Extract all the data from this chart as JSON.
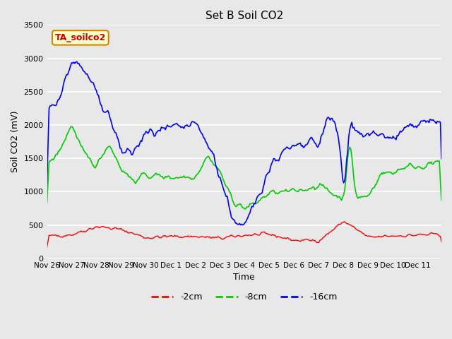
{
  "title": "Set B Soil CO2",
  "xlabel": "Time",
  "ylabel": "Soil CO2 (mV)",
  "ylim": [
    0,
    3500
  ],
  "colors": {
    "2cm": "#ff0000",
    "8cm": "#00cc00",
    "16cm": "#0000ff"
  },
  "legend_label": "TA_soilco2",
  "xtick_labels": [
    "Nov 26",
    "Nov 27",
    "Nov 28",
    "Nov 29",
    "Nov 30",
    "Dec 1",
    "Dec 2",
    "Dec 3",
    "Dec 4",
    "Dec 5",
    "Dec 6",
    "Dec 7",
    "Dec 8",
    "Dec 9",
    "Dec 10",
    "Dec 11"
  ],
  "xtick_positions": [
    0,
    24,
    48,
    72,
    96,
    120,
    144,
    168,
    192,
    216,
    240,
    264,
    288,
    312,
    336,
    360
  ],
  "ytick_labels": [
    "0",
    "500",
    "1000",
    "1500",
    "2000",
    "2500",
    "3000",
    "3500"
  ],
  "ytick_positions": [
    0,
    500,
    1000,
    1500,
    2000,
    2500,
    3000,
    3500
  ],
  "red_keypoints": [
    [
      0,
      330
    ],
    [
      24,
      360
    ],
    [
      48,
      480
    ],
    [
      72,
      430
    ],
    [
      96,
      310
    ],
    [
      120,
      330
    ],
    [
      144,
      330
    ],
    [
      168,
      300
    ],
    [
      192,
      350
    ],
    [
      216,
      360
    ],
    [
      240,
      270
    ],
    [
      264,
      270
    ],
    [
      288,
      560
    ],
    [
      312,
      310
    ],
    [
      336,
      340
    ],
    [
      360,
      350
    ],
    [
      383,
      360
    ]
  ],
  "green_keypoints": [
    [
      0,
      1380
    ],
    [
      12,
      1600
    ],
    [
      24,
      2020
    ],
    [
      36,
      1550
    ],
    [
      48,
      1380
    ],
    [
      60,
      1740
    ],
    [
      72,
      1350
    ],
    [
      84,
      1160
    ],
    [
      96,
      1250
    ],
    [
      120,
      1220
    ],
    [
      144,
      1230
    ],
    [
      156,
      1550
    ],
    [
      168,
      1300
    ],
    [
      180,
      870
    ],
    [
      192,
      750
    ],
    [
      200,
      800
    ],
    [
      216,
      980
    ],
    [
      240,
      1000
    ],
    [
      264,
      1100
    ],
    [
      288,
      880
    ],
    [
      294,
      1820
    ],
    [
      300,
      900
    ],
    [
      312,
      930
    ],
    [
      324,
      1270
    ],
    [
      336,
      1290
    ],
    [
      348,
      1380
    ],
    [
      360,
      1380
    ],
    [
      383,
      1440
    ]
  ],
  "blue_keypoints": [
    [
      0,
      2200
    ],
    [
      12,
      2400
    ],
    [
      24,
      2980
    ],
    [
      36,
      2820
    ],
    [
      48,
      2500
    ],
    [
      54,
      2120
    ],
    [
      60,
      2200
    ],
    [
      66,
      1890
    ],
    [
      72,
      1580
    ],
    [
      84,
      1600
    ],
    [
      96,
      1880
    ],
    [
      108,
      1890
    ],
    [
      120,
      1940
    ],
    [
      132,
      1960
    ],
    [
      144,
      2010
    ],
    [
      156,
      1700
    ],
    [
      162,
      1500
    ],
    [
      168,
      1200
    ],
    [
      174,
      900
    ],
    [
      180,
      600
    ],
    [
      186,
      470
    ],
    [
      192,
      470
    ],
    [
      200,
      800
    ],
    [
      210,
      1150
    ],
    [
      220,
      1480
    ],
    [
      232,
      1620
    ],
    [
      248,
      1680
    ],
    [
      258,
      1750
    ],
    [
      264,
      1700
    ],
    [
      270,
      2050
    ],
    [
      278,
      2080
    ],
    [
      284,
      1670
    ],
    [
      288,
      950
    ],
    [
      294,
      2140
    ],
    [
      300,
      1890
    ],
    [
      312,
      1840
    ],
    [
      324,
      1850
    ],
    [
      336,
      1790
    ],
    [
      348,
      1920
    ],
    [
      360,
      2000
    ],
    [
      383,
      2090
    ]
  ]
}
